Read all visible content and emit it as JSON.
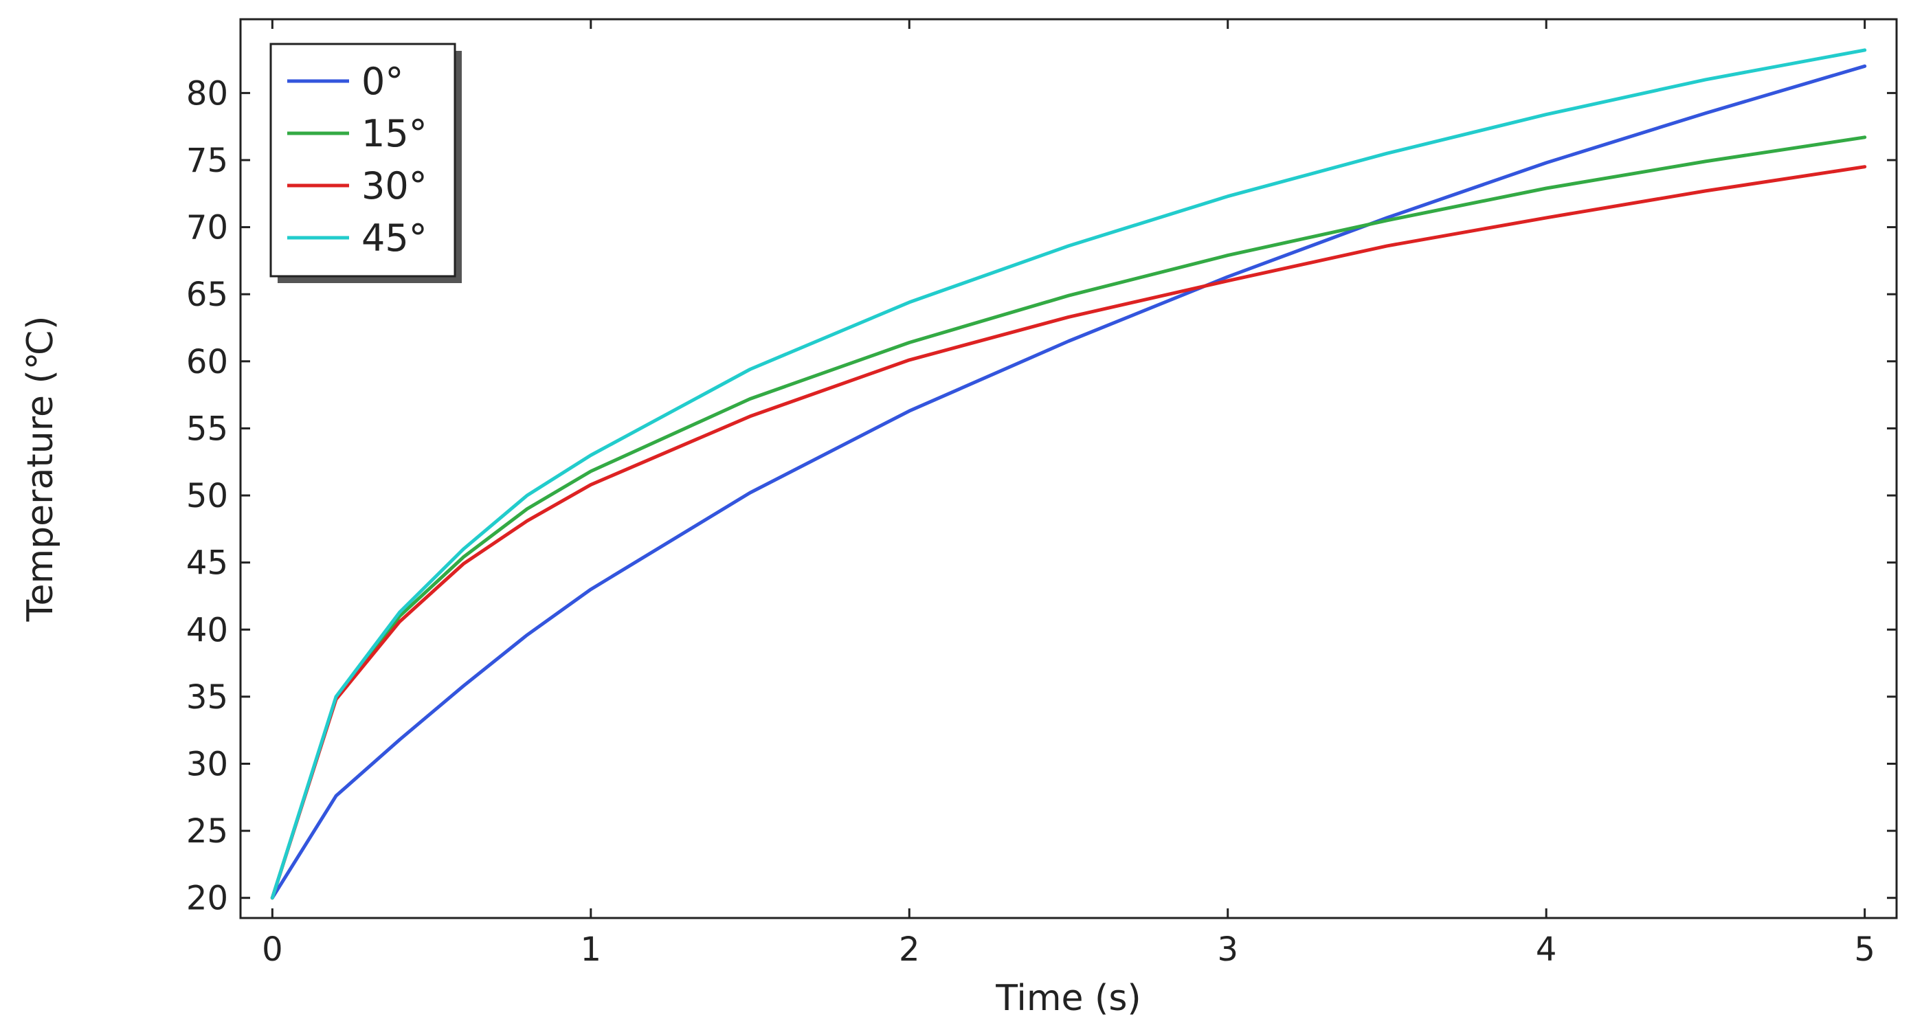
{
  "chart_data": {
    "type": "line",
    "xlabel": "Time (s)",
    "ylabel": "Temperature (℃)",
    "xlim": [
      -0.1,
      5.1
    ],
    "ylim": [
      18.5,
      85.5
    ],
    "xticks": [
      0,
      1,
      2,
      3,
      4,
      5
    ],
    "yticks": [
      20,
      25,
      30,
      35,
      40,
      45,
      50,
      55,
      60,
      65,
      70,
      75,
      80
    ],
    "grid": false,
    "legend": "top-left",
    "x": [
      0,
      0.2,
      0.4,
      0.6,
      0.8,
      1.0,
      1.5,
      2.0,
      2.5,
      3.0,
      3.5,
      4.0,
      4.5,
      5.0
    ],
    "series": [
      {
        "name": "0°",
        "color": "#3355dd",
        "values": [
          20,
          27.6,
          31.8,
          35.8,
          39.6,
          43.0,
          50.2,
          56.3,
          61.5,
          66.3,
          70.7,
          74.8,
          78.5,
          82.0
        ]
      },
      {
        "name": "15°",
        "color": "#33aa44",
        "values": [
          20,
          34.9,
          41.0,
          45.4,
          49.0,
          51.8,
          57.2,
          61.4,
          64.9,
          67.9,
          70.5,
          72.9,
          74.9,
          76.7
        ]
      },
      {
        "name": "30°",
        "color": "#dd2222",
        "values": [
          20,
          34.8,
          40.6,
          44.9,
          48.1,
          50.8,
          55.9,
          60.1,
          63.3,
          66.0,
          68.6,
          70.7,
          72.7,
          74.5
        ]
      },
      {
        "name": "45°",
        "color": "#22cccc",
        "values": [
          20,
          35.0,
          41.3,
          46.0,
          50.0,
          53.0,
          59.4,
          64.4,
          68.6,
          72.3,
          75.5,
          78.4,
          81.0,
          83.2
        ]
      }
    ]
  }
}
